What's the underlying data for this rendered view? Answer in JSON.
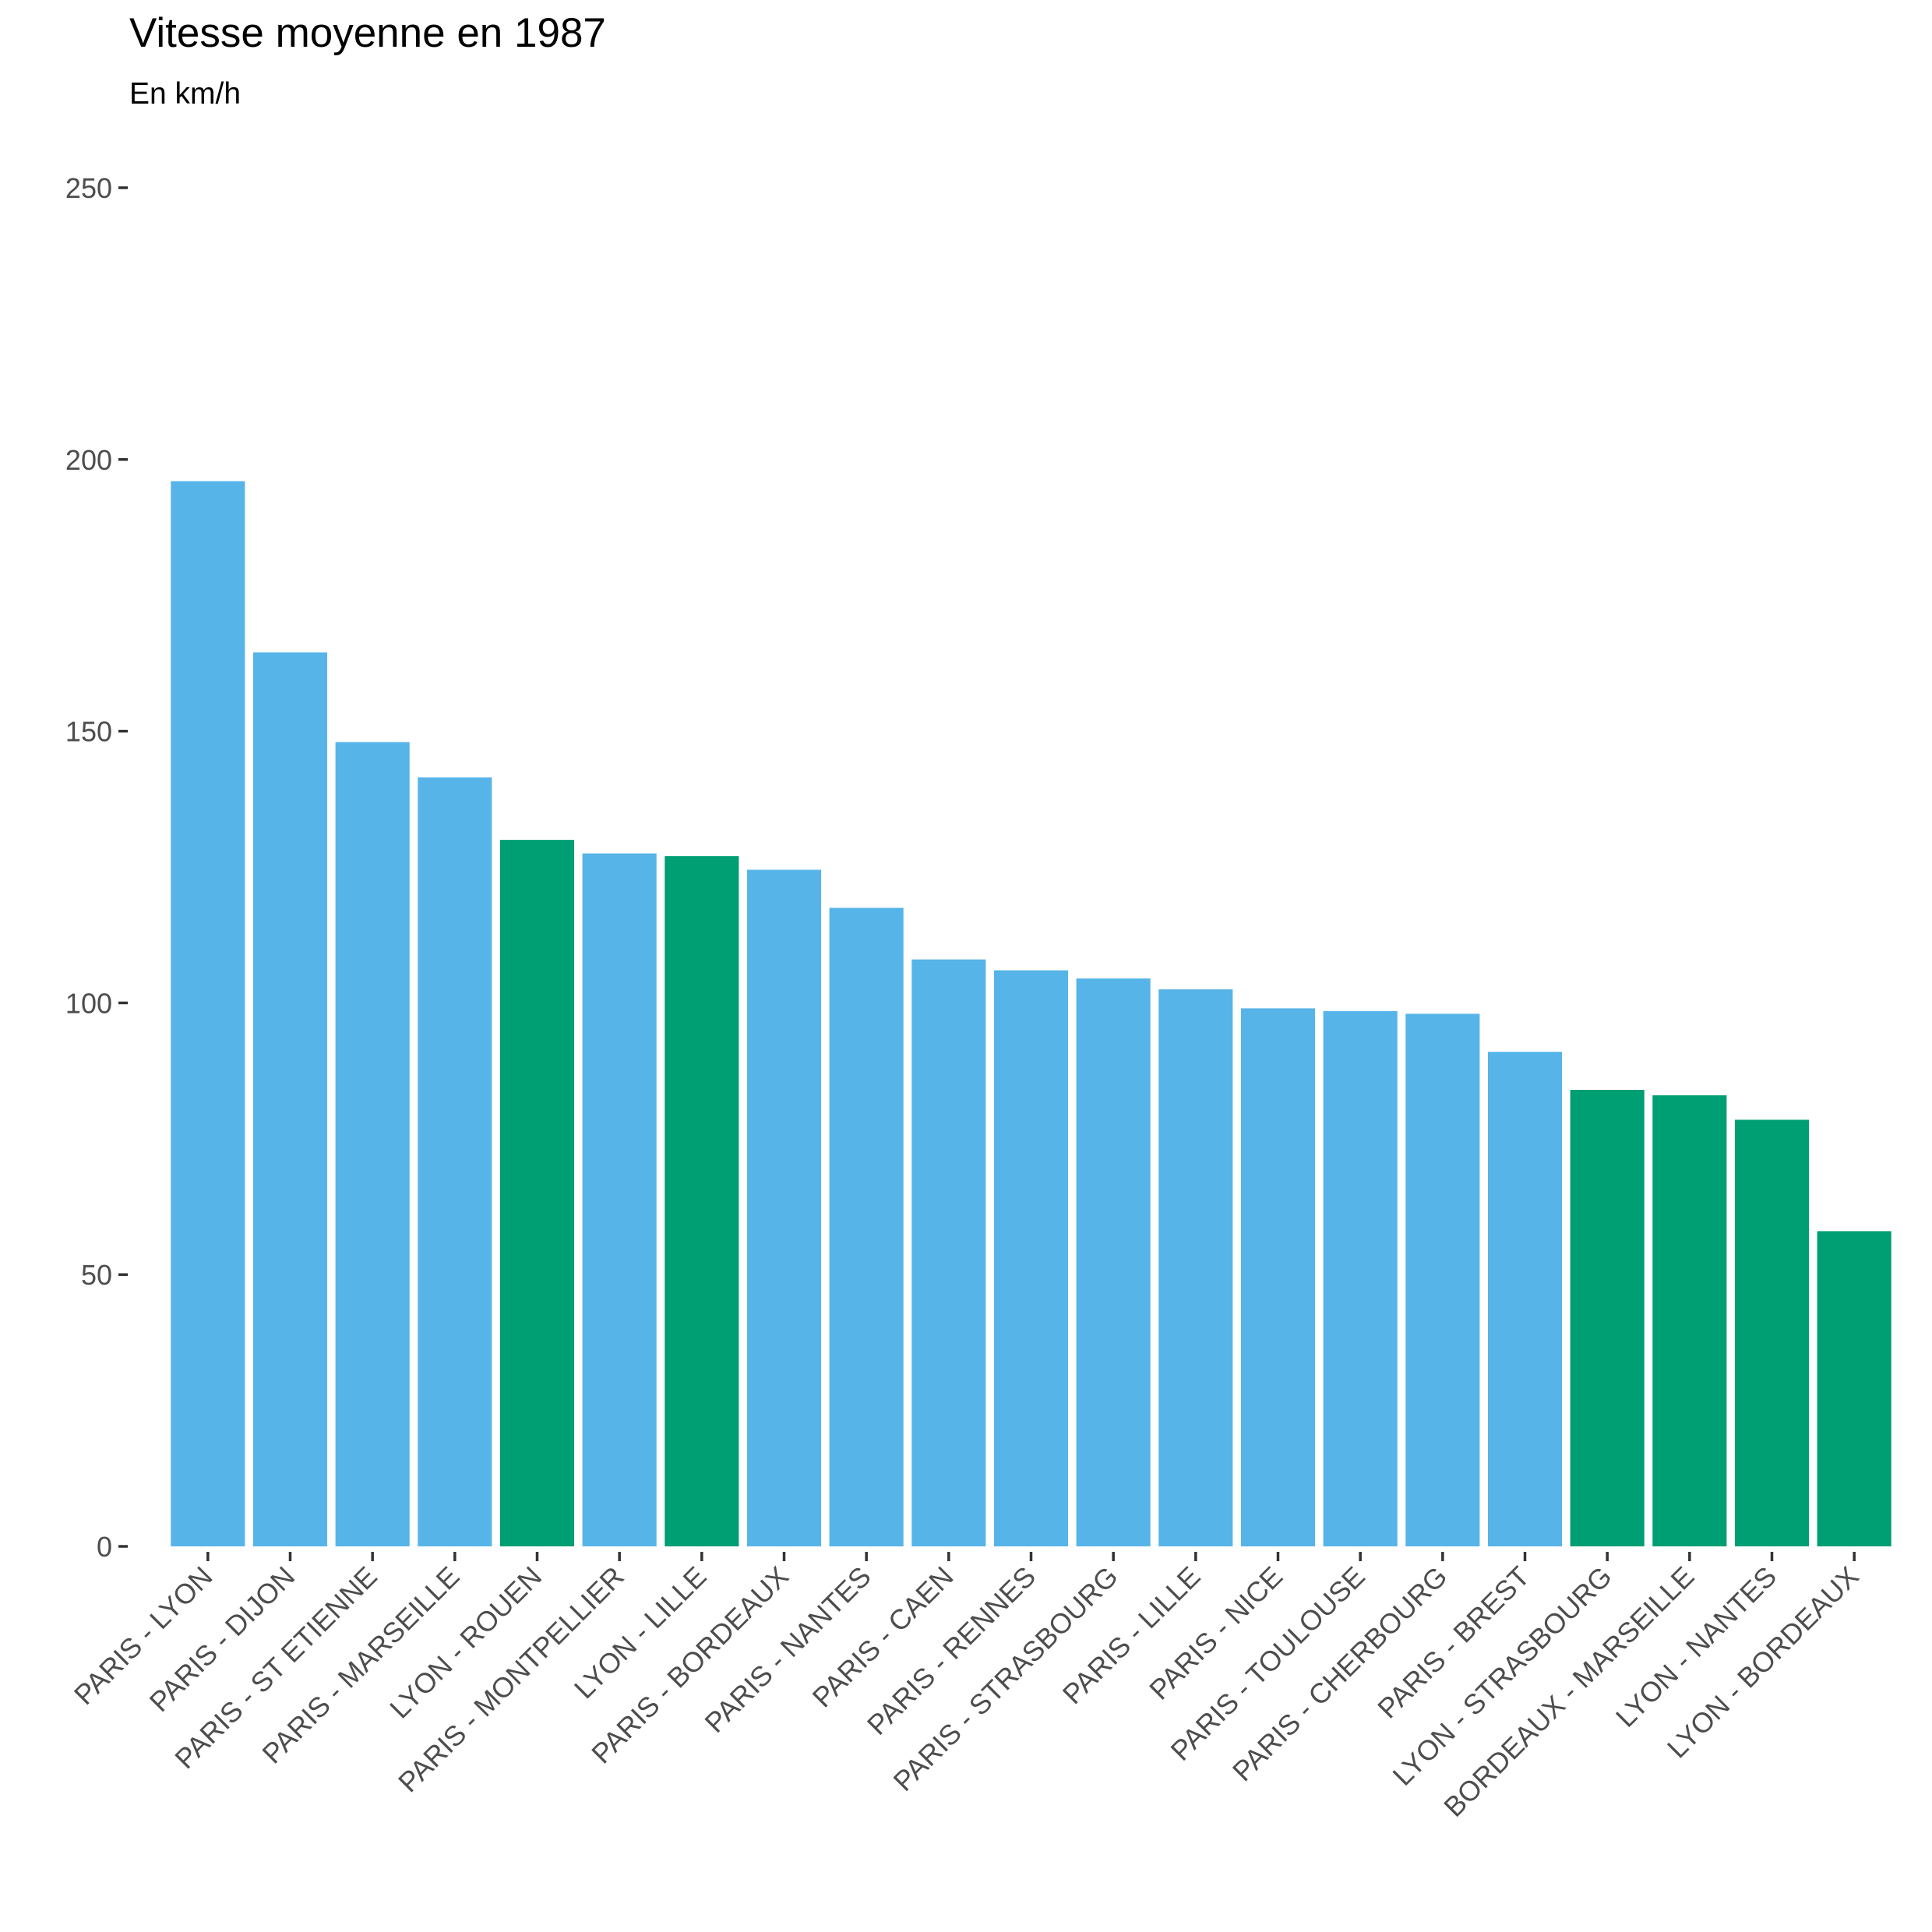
{
  "chart_data": {
    "type": "bar",
    "title": "Vitesse moyenne en 1987",
    "subtitle": "En km/h",
    "xlabel": "",
    "ylabel": "",
    "ylim": [
      0,
      250
    ],
    "yticks": [
      0,
      50,
      100,
      150,
      200,
      250
    ],
    "grid": false,
    "legend": "none",
    "colors": {
      "paris": "#56B4E9",
      "province": "#009E73"
    },
    "categories": [
      "PARIS - LYON",
      "PARIS - DIJON",
      "PARIS - ST ETIENNE",
      "PARIS - MARSEILLE",
      "LYON - ROUEN",
      "PARIS - MONTPELLIER",
      "LYON - LILLE",
      "PARIS - BORDEAUX",
      "PARIS - NANTES",
      "PARIS - CAEN",
      "PARIS - RENNES",
      "PARIS - STRASBOURG",
      "PARIS - LILLE",
      "PARIS - NICE",
      "PARIS - TOULOUSE",
      "PARIS - CHERBOURG",
      "PARIS - BREST",
      "LYON - STRASBOURG",
      "BORDEAUX - MARSEILLE",
      "LYON - NANTES",
      "LYON - BORDEAUX"
    ],
    "values": [
      196,
      164.5,
      148,
      141.5,
      130,
      127.5,
      127,
      124.5,
      117.5,
      108,
      106,
      104.5,
      102.5,
      99,
      98.5,
      98,
      91,
      84,
      83,
      78.5,
      58
    ],
    "groups": [
      "paris",
      "paris",
      "paris",
      "paris",
      "province",
      "paris",
      "province",
      "paris",
      "paris",
      "paris",
      "paris",
      "paris",
      "paris",
      "paris",
      "paris",
      "paris",
      "paris",
      "province",
      "province",
      "province",
      "province"
    ]
  }
}
